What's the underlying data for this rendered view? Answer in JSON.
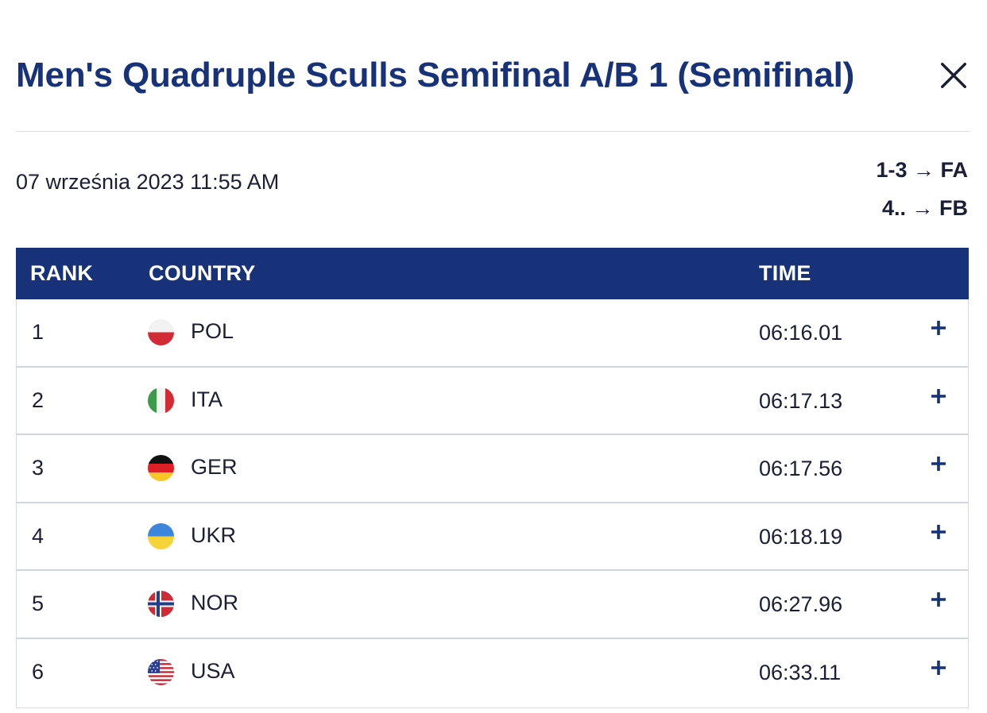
{
  "header": {
    "title": "Men's Quadruple Sculls Semifinal A/B 1 (Semifinal)",
    "close_icon": "close-icon"
  },
  "meta": {
    "date": "07 września 2023 11:55 AM",
    "progression": [
      "1-3 → FA",
      "4.. → FB"
    ]
  },
  "table": {
    "columns": {
      "rank": "RANK",
      "country": "COUNTRY",
      "time": "TIME"
    },
    "rows": [
      {
        "rank": "1",
        "country": "POL",
        "time": "06:16.01",
        "flag": "flag-pol-icon"
      },
      {
        "rank": "2",
        "country": "ITA",
        "time": "06:17.13",
        "flag": "flag-ita-icon"
      },
      {
        "rank": "3",
        "country": "GER",
        "time": "06:17.56",
        "flag": "flag-ger-icon"
      },
      {
        "rank": "4",
        "country": "UKR",
        "time": "06:18.19",
        "flag": "flag-ukr-icon"
      },
      {
        "rank": "5",
        "country": "NOR",
        "time": "06:27.96",
        "flag": "flag-nor-icon"
      },
      {
        "rank": "6",
        "country": "USA",
        "time": "06:33.11",
        "flag": "flag-usa-icon"
      }
    ],
    "expand_icon": "plus-icon"
  },
  "colors": {
    "brand": "#173278",
    "text": "#1a1f36",
    "divider": "#dcdfe4"
  }
}
